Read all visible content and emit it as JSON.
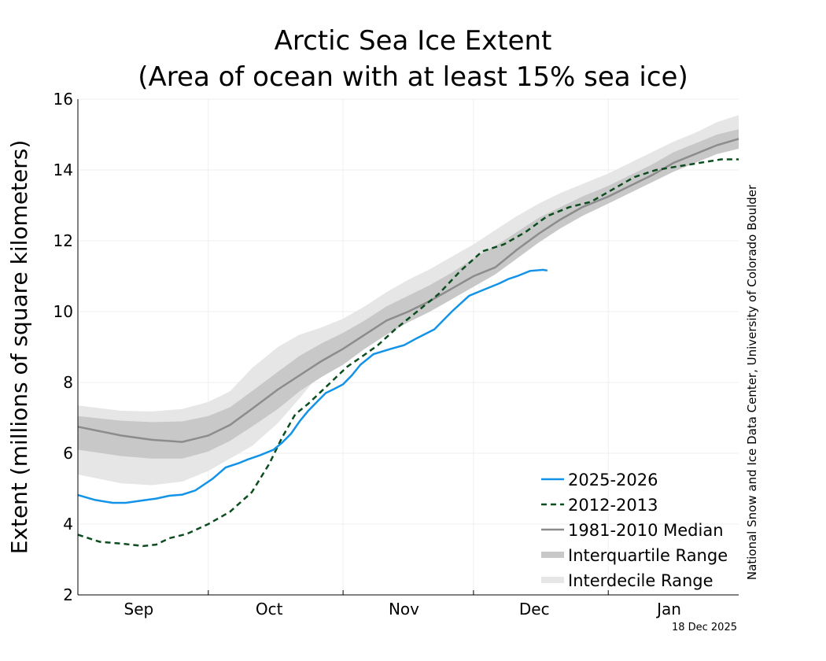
{
  "chart_data": {
    "type": "line",
    "title": "Arctic Sea Ice Extent",
    "subtitle": "(Area of ocean with at least 15% sea ice)",
    "ylabel": "Extent (millions of square kilometers)",
    "xlabel": "",
    "ylim": [
      2,
      16
    ],
    "yticks": [
      2,
      4,
      6,
      8,
      10,
      12,
      14,
      16
    ],
    "xlim": [
      0,
      152
    ],
    "month_ticks": [
      0,
      30,
      61,
      91,
      122,
      152
    ],
    "month_labels": [
      {
        "label": "Sep",
        "x": 14
      },
      {
        "label": "Oct",
        "x": 44
      },
      {
        "label": "Nov",
        "x": 75
      },
      {
        "label": "Dec",
        "x": 105
      },
      {
        "label": "Jan",
        "x": 136
      }
    ],
    "grid": true,
    "legend_position": "bottom-right",
    "credit": "National Snow and Ice Data Center, University of Colorado Boulder",
    "date_stamp": "18 Dec 2025",
    "colors": {
      "series_2025": "#1393e8",
      "series_2012": "#0b4d1f",
      "median": "#8c8c8c",
      "interquartile": "#c8c8c8",
      "interdecile": "#e6e6e6",
      "grid": "#efefef",
      "axis": "#000000"
    },
    "median": {
      "name": "1981-2010 Median",
      "x": [
        0,
        10,
        17,
        24,
        30,
        35,
        40,
        46,
        51,
        56,
        61,
        66,
        71,
        76,
        81,
        86,
        91,
        96,
        101,
        106,
        111,
        116,
        122,
        127,
        132,
        137,
        142,
        147,
        152
      ],
      "y": [
        6.75,
        6.5,
        6.38,
        6.32,
        6.5,
        6.8,
        7.25,
        7.8,
        8.2,
        8.6,
        8.95,
        9.35,
        9.75,
        10.0,
        10.3,
        10.65,
        11.0,
        11.25,
        11.75,
        12.2,
        12.6,
        12.95,
        13.25,
        13.55,
        13.85,
        14.2,
        14.45,
        14.7,
        14.88
      ]
    },
    "interquartile": {
      "name": "Interquartile Range",
      "x": [
        0,
        10,
        17,
        24,
        30,
        35,
        40,
        46,
        51,
        56,
        61,
        66,
        71,
        76,
        81,
        86,
        91,
        96,
        101,
        106,
        111,
        116,
        122,
        127,
        132,
        137,
        142,
        147,
        152
      ],
      "low": [
        6.1,
        5.92,
        5.85,
        5.85,
        6.05,
        6.35,
        6.75,
        7.25,
        7.75,
        8.15,
        8.5,
        8.95,
        9.35,
        9.7,
        10.0,
        10.35,
        10.7,
        11.05,
        11.5,
        11.95,
        12.35,
        12.7,
        13.05,
        13.35,
        13.65,
        13.95,
        14.2,
        14.45,
        14.6
      ],
      "high": [
        7.05,
        6.92,
        6.88,
        6.9,
        7.05,
        7.3,
        7.75,
        8.3,
        8.75,
        9.1,
        9.4,
        9.75,
        10.15,
        10.45,
        10.75,
        11.1,
        11.5,
        11.85,
        12.25,
        12.65,
        12.95,
        13.25,
        13.55,
        13.85,
        14.15,
        14.5,
        14.75,
        15.0,
        15.15
      ]
    },
    "interdecile": {
      "name": "Interdecile Range",
      "x": [
        0,
        10,
        17,
        24,
        30,
        35,
        40,
        46,
        51,
        56,
        61,
        66,
        71,
        76,
        81,
        86,
        91,
        96,
        101,
        106,
        111,
        116,
        122,
        127,
        132,
        137,
        142,
        147,
        152
      ],
      "low": [
        5.4,
        5.15,
        5.1,
        5.2,
        5.5,
        5.85,
        6.2,
        6.85,
        7.55,
        8.3,
        8.8,
        9.25,
        9.55,
        9.9,
        10.25,
        10.55,
        10.85,
        11.2,
        11.7,
        12.3,
        12.7,
        13.05,
        13.3,
        13.6,
        13.9,
        14.2,
        14.45,
        14.7,
        14.85
      ],
      "high": [
        7.35,
        7.2,
        7.18,
        7.25,
        7.45,
        7.75,
        8.4,
        9.0,
        9.35,
        9.55,
        9.8,
        10.15,
        10.55,
        10.9,
        11.2,
        11.55,
        11.9,
        12.3,
        12.7,
        13.05,
        13.35,
        13.6,
        13.9,
        14.2,
        14.5,
        14.8,
        15.05,
        15.35,
        15.55
      ]
    },
    "series": [
      {
        "name": "2025-2026",
        "x": [
          0,
          4,
          8,
          11,
          15,
          18,
          21,
          24,
          27,
          31,
          34,
          37,
          39,
          42,
          45,
          47,
          49,
          51,
          53,
          55,
          57,
          59,
          61,
          63,
          65,
          68,
          72,
          75,
          78,
          82,
          86,
          90,
          93,
          95,
          97,
          99,
          101,
          104,
          107,
          108
        ],
        "y": [
          4.82,
          4.68,
          4.6,
          4.6,
          4.67,
          4.72,
          4.8,
          4.83,
          4.95,
          5.28,
          5.6,
          5.72,
          5.82,
          5.95,
          6.1,
          6.3,
          6.55,
          6.9,
          7.2,
          7.45,
          7.7,
          7.82,
          7.95,
          8.2,
          8.5,
          8.8,
          8.95,
          9.05,
          9.25,
          9.5,
          10.0,
          10.45,
          10.6,
          10.7,
          10.8,
          10.92,
          11.0,
          11.15,
          11.18,
          11.16
        ]
      },
      {
        "name": "2012-2013",
        "x": [
          0,
          5,
          10,
          15,
          18,
          21,
          25,
          30,
          35,
          40,
          44,
          47,
          50,
          53,
          56,
          59,
          62,
          65,
          69,
          73,
          78,
          83,
          88,
          93,
          98,
          103,
          108,
          113,
          118,
          123,
          128,
          133,
          138,
          143,
          148,
          152
        ],
        "y": [
          3.7,
          3.5,
          3.45,
          3.38,
          3.42,
          3.6,
          3.72,
          4.0,
          4.35,
          4.9,
          5.7,
          6.45,
          7.1,
          7.4,
          7.75,
          8.1,
          8.45,
          8.7,
          9.05,
          9.5,
          10.0,
          10.5,
          11.15,
          11.7,
          11.9,
          12.25,
          12.7,
          12.95,
          13.1,
          13.45,
          13.8,
          14.0,
          14.1,
          14.2,
          14.3,
          14.3
        ]
      }
    ]
  }
}
